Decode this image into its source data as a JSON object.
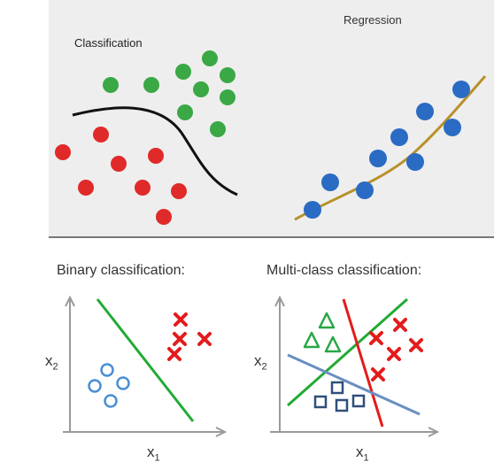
{
  "panels": {
    "classification": {
      "title": "Classification",
      "colors": {
        "green": "#3aa845",
        "red": "#e02a2a",
        "boundary": "#111111",
        "background": "#eeeeee"
      }
    },
    "regression": {
      "title": "Regression",
      "colors": {
        "point": "#2a6bc4",
        "curve": "#b8912b"
      }
    },
    "binary": {
      "title": "Binary classification:",
      "x_label": "x",
      "x_sub": "1",
      "y_label": "x",
      "y_sub": "2",
      "marker_shapes": [
        "circle-icon",
        "cross-icon"
      ],
      "colors": {
        "circle": "#4a8fd4",
        "cross": "#e41b1b",
        "line": "#22aa33"
      }
    },
    "multiclass": {
      "title": "Multi-class classification:",
      "x_label": "x",
      "x_sub": "1",
      "y_label": "x",
      "y_sub": "2",
      "marker_shapes": [
        "triangle-icon",
        "square-icon",
        "cross-icon"
      ],
      "colors": {
        "triangle": "#28a745",
        "square": "#2f4f7a",
        "cross": "#e41b1b",
        "green_line": "#22aa33",
        "red_line": "#e41b1b",
        "blue_line": "#6a8fc0"
      }
    }
  }
}
